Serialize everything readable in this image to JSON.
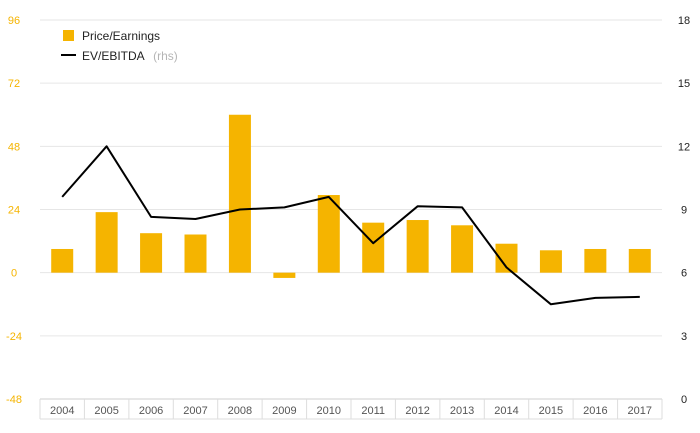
{
  "chart_data": {
    "type": "bar",
    "categories": [
      "2004",
      "2005",
      "2006",
      "2007",
      "2008",
      "2009",
      "2010",
      "2011",
      "2012",
      "2013",
      "2014",
      "2015",
      "2016",
      "2017"
    ],
    "series": [
      {
        "name": "Price/Earnings",
        "type": "bar",
        "axis": "left",
        "color": "#f5b400",
        "values": [
          9,
          23,
          15,
          14.5,
          60,
          -2,
          29.5,
          19,
          20,
          18,
          11,
          8.5,
          9,
          9
        ]
      },
      {
        "name": "EV/EBITDA",
        "name_suffix": "(rhs)",
        "type": "line",
        "axis": "right",
        "color": "#000000",
        "values": [
          9.6,
          12.0,
          8.65,
          8.55,
          9.0,
          9.1,
          9.6,
          7.4,
          9.15,
          9.1,
          6.25,
          4.5,
          4.8,
          4.85
        ]
      }
    ],
    "left_axis": {
      "ticks": [
        "96",
        "72",
        "48",
        "24",
        "0",
        "-24",
        "-48"
      ],
      "ylim": [
        -48,
        96
      ],
      "color": "#f5b400"
    },
    "right_axis": {
      "ticks": [
        "18",
        "15",
        "12",
        "9",
        "6",
        "3",
        "0"
      ],
      "ylim": [
        0,
        18
      ],
      "color": "#222222"
    },
    "grid": true,
    "legend_position": "top-left"
  }
}
